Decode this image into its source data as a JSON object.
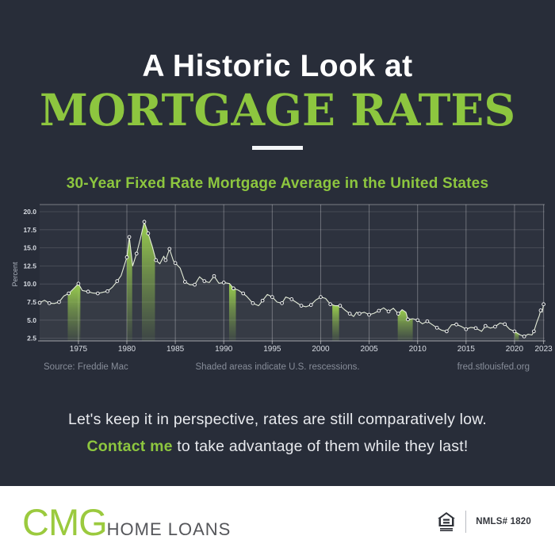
{
  "page": {
    "title_line1": "A Historic Look at",
    "title_line2": "MORTGAGE RATES",
    "subtitle": "30-Year Fixed Rate Mortgage Average in the United States",
    "message_line1": "Let's keep it in perspective, rates are still comparatively low.",
    "message_cta": "Contact me",
    "message_line2_rest": " to take advantage of them while they last!"
  },
  "footer": {
    "brand_cmg": "CMG",
    "brand_rest": "HOME LOANS",
    "nmls": "NMLS# 1820",
    "equal_housing_icon": "equal-housing-lender-icon"
  },
  "colors": {
    "background": "#282d39",
    "accent_green": "#8dc63f",
    "band_green": "#9ed44f",
    "plot_bg": "#2d323e",
    "line": "#e4ecd8",
    "marker_stroke": "#ffffff",
    "caption_gray": "#878d99",
    "tick_text": "#d8dce3",
    "footer_text": "#55565a"
  },
  "chart_data": {
    "type": "line",
    "title": "30-Year Fixed Rate Mortgage Average in the United States",
    "xlabel": "",
    "ylabel": "Percent",
    "xlim": [
      1971,
      2023
    ],
    "ylim": [
      2.0,
      20.0
    ],
    "grid": true,
    "legend": "none",
    "y_ticks": [
      20.0,
      17.5,
      15.0,
      12.5,
      10.0,
      7.5,
      5.0,
      2.5
    ],
    "y_tick_labels": [
      "20.0",
      "17.5",
      "15.0",
      "12.5",
      "10.0",
      "7.5",
      "5.0",
      "2.5"
    ],
    "x_ticks": [
      1975,
      1980,
      1985,
      1990,
      1995,
      2000,
      2005,
      2010,
      2015,
      2020,
      2023
    ],
    "recession_bands": [
      [
        1973.9,
        1975.2
      ],
      [
        1980.0,
        1980.55
      ],
      [
        1981.55,
        1982.9
      ],
      [
        1990.55,
        1991.25
      ],
      [
        2001.2,
        2001.9
      ],
      [
        2007.95,
        2009.5
      ],
      [
        2020.05,
        2020.45
      ]
    ],
    "annotations": {
      "source": "Source: Freddie Mac",
      "note": "Shaded areas indicate U.S. rescessions.",
      "site": "fred.stlouisfed.org"
    },
    "series": [
      {
        "name": "30-Year Fixed Rate Mortgage Average (percent)",
        "points": [
          [
            1971,
            7.4,
            1
          ],
          [
            1971.5,
            7.75,
            0
          ],
          [
            1972,
            7.35,
            1
          ],
          [
            1972.5,
            7.3,
            0
          ],
          [
            1973,
            7.5,
            1
          ],
          [
            1973.5,
            8.35,
            0
          ],
          [
            1974,
            8.7,
            1
          ],
          [
            1974.5,
            9.35,
            0
          ],
          [
            1975,
            10.05,
            1
          ],
          [
            1975.4,
            9.1,
            0
          ],
          [
            1976,
            8.95,
            1
          ],
          [
            1976.5,
            8.75,
            0
          ],
          [
            1977,
            8.7,
            1
          ],
          [
            1977.5,
            8.85,
            0
          ],
          [
            1978,
            9.0,
            1
          ],
          [
            1978.5,
            9.55,
            0
          ],
          [
            1979,
            10.4,
            1
          ],
          [
            1979.4,
            11.15,
            0
          ],
          [
            1980,
            13.7,
            1
          ],
          [
            1980.25,
            16.5,
            1
          ],
          [
            1980.6,
            12.5,
            0
          ],
          [
            1981,
            14.2,
            1
          ],
          [
            1981.4,
            16.3,
            0
          ],
          [
            1981.8,
            18.6,
            1
          ],
          [
            1982.2,
            17.0,
            1
          ],
          [
            1982.6,
            15.3,
            0
          ],
          [
            1983,
            13.3,
            1
          ],
          [
            1983.4,
            12.8,
            0
          ],
          [
            1983.8,
            13.85,
            0
          ],
          [
            1984,
            13.3,
            1
          ],
          [
            1984.4,
            14.85,
            1
          ],
          [
            1984.8,
            13.2,
            0
          ],
          [
            1985,
            12.9,
            1
          ],
          [
            1985.5,
            12.2,
            0
          ],
          [
            1986,
            10.3,
            1
          ],
          [
            1986.5,
            9.9,
            0
          ],
          [
            1987,
            9.9,
            1
          ],
          [
            1987.5,
            11.0,
            0
          ],
          [
            1988,
            10.4,
            1
          ],
          [
            1988.5,
            10.2,
            0
          ],
          [
            1989,
            11.1,
            1
          ],
          [
            1989.5,
            10.1,
            0
          ],
          [
            1990,
            10.2,
            1
          ],
          [
            1990.6,
            10.05,
            0
          ],
          [
            1991,
            9.4,
            1
          ],
          [
            1991.5,
            9.15,
            0
          ],
          [
            1992,
            8.7,
            1
          ],
          [
            1992.4,
            8.25,
            0
          ],
          [
            1993,
            7.35,
            1
          ],
          [
            1993.6,
            7.0,
            0
          ],
          [
            1994,
            7.7,
            1
          ],
          [
            1994.5,
            8.55,
            0
          ],
          [
            1995,
            8.2,
            1
          ],
          [
            1995.5,
            7.5,
            0
          ],
          [
            1996,
            7.35,
            1
          ],
          [
            1996.4,
            8.2,
            0
          ],
          [
            1997,
            7.9,
            1
          ],
          [
            1997.5,
            7.45,
            0
          ],
          [
            1998,
            7.0,
            1
          ],
          [
            1998.5,
            6.85,
            0
          ],
          [
            1999,
            7.1,
            1
          ],
          [
            1999.5,
            7.8,
            0
          ],
          [
            2000,
            8.2,
            1
          ],
          [
            2000.5,
            8.0,
            0
          ],
          [
            2001,
            7.2,
            1
          ],
          [
            2001.5,
            7.0,
            0
          ],
          [
            2002,
            7.0,
            1
          ],
          [
            2002.5,
            6.4,
            0
          ],
          [
            2003,
            5.9,
            1
          ],
          [
            2003.4,
            5.5,
            0
          ],
          [
            2003.7,
            6.1,
            0
          ],
          [
            2004,
            5.9,
            1
          ],
          [
            2004.5,
            6.1,
            0
          ],
          [
            2005,
            5.75,
            1
          ],
          [
            2005.5,
            5.95,
            0
          ],
          [
            2006,
            6.3,
            1
          ],
          [
            2006.5,
            6.7,
            0
          ],
          [
            2007,
            6.2,
            1
          ],
          [
            2007.5,
            6.65,
            0
          ],
          [
            2008,
            5.9,
            1
          ],
          [
            2008.4,
            6.45,
            0
          ],
          [
            2008.8,
            6.1,
            0
          ],
          [
            2009,
            5.1,
            1
          ],
          [
            2009.5,
            5.2,
            0
          ],
          [
            2010,
            5.0,
            1
          ],
          [
            2010.5,
            4.5,
            0
          ],
          [
            2011,
            4.85,
            1
          ],
          [
            2011.5,
            4.4,
            0
          ],
          [
            2012,
            3.95,
            1
          ],
          [
            2012.5,
            3.6,
            0
          ],
          [
            2013,
            3.45,
            1
          ],
          [
            2013.5,
            4.35,
            0
          ],
          [
            2014,
            4.4,
            1
          ],
          [
            2014.5,
            4.15,
            0
          ],
          [
            2015,
            3.75,
            1
          ],
          [
            2015.5,
            4.0,
            0
          ],
          [
            2016,
            3.9,
            1
          ],
          [
            2016.6,
            3.45,
            0
          ],
          [
            2017,
            4.2,
            1
          ],
          [
            2017.5,
            3.9,
            0
          ],
          [
            2018,
            4.1,
            1
          ],
          [
            2018.5,
            4.6,
            0
          ],
          [
            2019,
            4.45,
            1
          ],
          [
            2019.5,
            3.75,
            0
          ],
          [
            2020,
            3.45,
            1
          ],
          [
            2020.6,
            2.95,
            0
          ],
          [
            2021,
            2.75,
            1
          ],
          [
            2021.4,
            3.05,
            0
          ],
          [
            2021.8,
            2.95,
            0
          ],
          [
            2022,
            3.45,
            1
          ],
          [
            2022.3,
            4.7,
            0
          ],
          [
            2022.55,
            5.6,
            0
          ],
          [
            2022.7,
            6.35,
            1
          ],
          [
            2022.85,
            6.1,
            0
          ],
          [
            2023,
            7.2,
            1
          ]
        ]
      }
    ]
  }
}
